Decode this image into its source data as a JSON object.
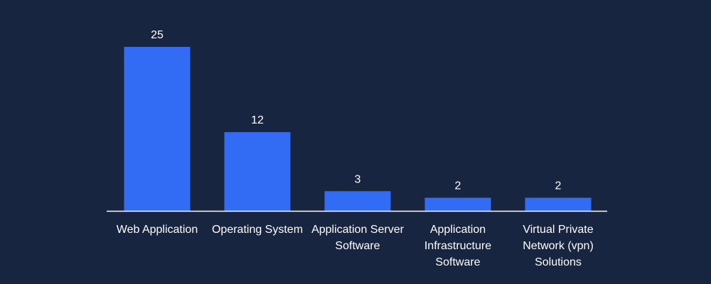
{
  "colors": {
    "background": "#172540",
    "bar": "#336CF4",
    "text": "#FFFFFF",
    "axis": "#FFFFFF"
  },
  "chart_data": {
    "type": "bar",
    "categories": [
      [
        "Web Application"
      ],
      [
        "Operating System"
      ],
      [
        "Application Server",
        "Software"
      ],
      [
        "Application",
        "Infrastructure",
        "Software"
      ],
      [
        "Virtual Private",
        "Network (vpn)",
        "Solutions"
      ]
    ],
    "values": [
      25,
      12,
      3,
      2,
      2
    ],
    "data_labels": [
      "25",
      "12",
      "3",
      "2",
      "2"
    ],
    "grid": false,
    "legend": "none"
  }
}
